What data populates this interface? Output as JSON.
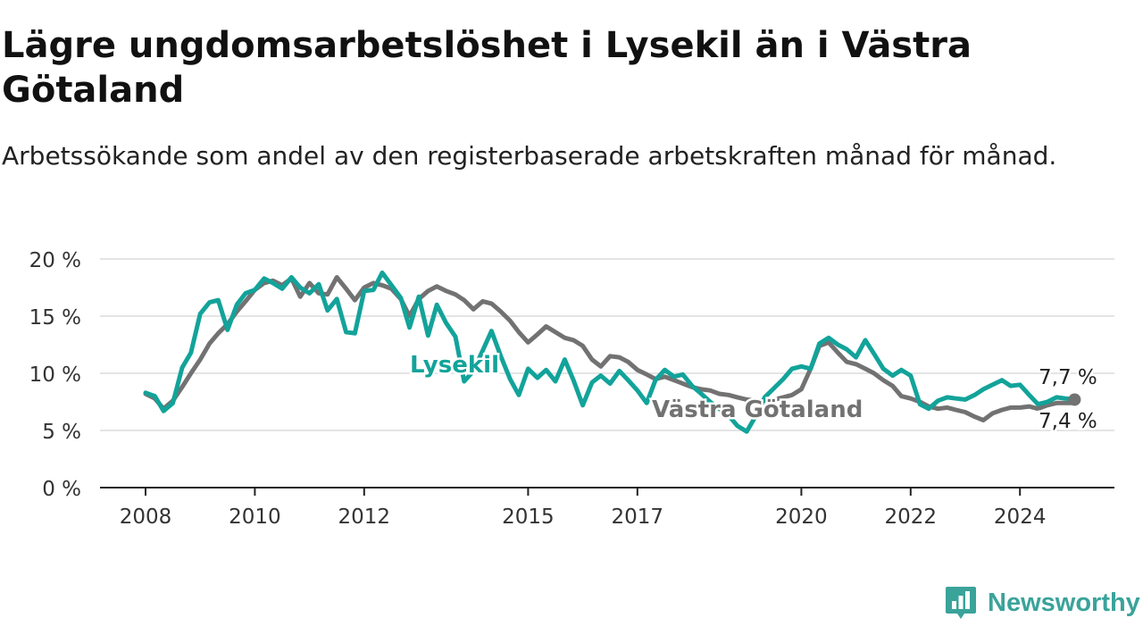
{
  "header": {
    "title": "Lägre ungdomsarbetslöshet i Lysekil än i Västra Götaland",
    "subtitle": "Arbetssökande som andel av den registerbaserade arbetskraften månad för månad."
  },
  "brand": {
    "name": "Newsworthy",
    "icon": "newsworthy-logo-icon",
    "color": "#3aa39a"
  },
  "chart_data": {
    "type": "line",
    "title": "Lägre ungdomsarbetslöshet i Lysekil än i Västra Götaland",
    "subtitle": "Arbetssökande som andel av den registerbaserade arbetskraften månad för månad.",
    "x_unit": "year (decimal, monthly)",
    "xlim": [
      2008,
      2025.6
    ],
    "ylim": [
      0,
      20
    ],
    "x_ticks": [
      2008,
      2010,
      2012,
      2015,
      2017,
      2020,
      2022,
      2024
    ],
    "x_tick_labels": [
      "2008",
      "2010",
      "2012",
      "2015",
      "2017",
      "2020",
      "2022",
      "2024"
    ],
    "y_ticks": [
      0,
      5,
      10,
      15,
      20
    ],
    "y_tick_labels": [
      "0 %",
      "5 %",
      "10 %",
      "15 %",
      "20 %"
    ],
    "grid": "horizontal",
    "legend": "inline labels",
    "series": [
      {
        "name": "Västra Götaland",
        "color": "#727272",
        "end_label": "7,4 %",
        "end_value": 7.4,
        "points": [
          [
            2008.0,
            8.2
          ],
          [
            2008.17,
            7.8
          ],
          [
            2008.33,
            6.9
          ],
          [
            2008.5,
            7.6
          ],
          [
            2008.67,
            8.8
          ],
          [
            2008.83,
            10.0
          ],
          [
            2009.0,
            11.2
          ],
          [
            2009.17,
            12.6
          ],
          [
            2009.33,
            13.5
          ],
          [
            2009.5,
            14.3
          ],
          [
            2009.67,
            15.4
          ],
          [
            2009.83,
            16.3
          ],
          [
            2010.0,
            17.3
          ],
          [
            2010.17,
            17.9
          ],
          [
            2010.33,
            18.1
          ],
          [
            2010.5,
            17.7
          ],
          [
            2010.67,
            18.3
          ],
          [
            2010.83,
            16.7
          ],
          [
            2011.0,
            17.9
          ],
          [
            2011.17,
            17.0
          ],
          [
            2011.33,
            16.9
          ],
          [
            2011.5,
            18.4
          ],
          [
            2011.67,
            17.4
          ],
          [
            2011.83,
            16.4
          ],
          [
            2012.0,
            17.5
          ],
          [
            2012.17,
            17.9
          ],
          [
            2012.33,
            17.7
          ],
          [
            2012.5,
            17.4
          ],
          [
            2012.67,
            16.5
          ],
          [
            2012.83,
            15.0
          ],
          [
            2013.0,
            16.5
          ],
          [
            2013.17,
            17.2
          ],
          [
            2013.33,
            17.6
          ],
          [
            2013.5,
            17.2
          ],
          [
            2013.67,
            16.9
          ],
          [
            2013.83,
            16.4
          ],
          [
            2014.0,
            15.6
          ],
          [
            2014.17,
            16.3
          ],
          [
            2014.33,
            16.1
          ],
          [
            2014.5,
            15.4
          ],
          [
            2014.67,
            14.6
          ],
          [
            2014.83,
            13.6
          ],
          [
            2015.0,
            12.7
          ],
          [
            2015.17,
            13.4
          ],
          [
            2015.33,
            14.1
          ],
          [
            2015.5,
            13.6
          ],
          [
            2015.67,
            13.1
          ],
          [
            2015.83,
            12.9
          ],
          [
            2016.0,
            12.4
          ],
          [
            2016.17,
            11.2
          ],
          [
            2016.33,
            10.6
          ],
          [
            2016.5,
            11.5
          ],
          [
            2016.67,
            11.4
          ],
          [
            2016.83,
            11.0
          ],
          [
            2017.0,
            10.3
          ],
          [
            2017.17,
            9.9
          ],
          [
            2017.33,
            9.5
          ],
          [
            2017.5,
            9.7
          ],
          [
            2017.67,
            9.4
          ],
          [
            2017.83,
            9.1
          ],
          [
            2018.0,
            8.8
          ],
          [
            2018.17,
            8.6
          ],
          [
            2018.33,
            8.5
          ],
          [
            2018.5,
            8.2
          ],
          [
            2018.67,
            8.1
          ],
          [
            2018.83,
            7.9
          ],
          [
            2019.0,
            7.7
          ],
          [
            2019.17,
            7.6
          ],
          [
            2019.33,
            7.6
          ],
          [
            2019.5,
            7.7
          ],
          [
            2019.67,
            7.9
          ],
          [
            2019.83,
            8.1
          ],
          [
            2020.0,
            8.6
          ],
          [
            2020.17,
            10.4
          ],
          [
            2020.33,
            12.4
          ],
          [
            2020.5,
            12.7
          ],
          [
            2020.67,
            11.8
          ],
          [
            2020.83,
            11.0
          ],
          [
            2021.0,
            10.8
          ],
          [
            2021.17,
            10.4
          ],
          [
            2021.33,
            10.0
          ],
          [
            2021.5,
            9.4
          ],
          [
            2021.67,
            8.9
          ],
          [
            2021.83,
            8.0
          ],
          [
            2022.0,
            7.8
          ],
          [
            2022.17,
            7.5
          ],
          [
            2022.33,
            7.1
          ],
          [
            2022.5,
            6.9
          ],
          [
            2022.67,
            7.0
          ],
          [
            2022.83,
            6.8
          ],
          [
            2023.0,
            6.6
          ],
          [
            2023.17,
            6.2
          ],
          [
            2023.33,
            5.9
          ],
          [
            2023.5,
            6.5
          ],
          [
            2023.67,
            6.8
          ],
          [
            2023.83,
            7.0
          ],
          [
            2024.0,
            7.0
          ],
          [
            2024.17,
            7.1
          ],
          [
            2024.33,
            6.9
          ],
          [
            2024.5,
            7.2
          ],
          [
            2024.67,
            7.4
          ],
          [
            2024.83,
            7.4
          ],
          [
            2025.0,
            7.4
          ]
        ]
      },
      {
        "name": "Lysekil",
        "color": "#12a39a",
        "end_label": "7,7 %",
        "end_value": 7.7,
        "points": [
          [
            2008.0,
            8.3
          ],
          [
            2008.17,
            8.0
          ],
          [
            2008.33,
            6.7
          ],
          [
            2008.5,
            7.4
          ],
          [
            2008.67,
            10.5
          ],
          [
            2008.83,
            11.8
          ],
          [
            2009.0,
            15.2
          ],
          [
            2009.17,
            16.2
          ],
          [
            2009.33,
            16.4
          ],
          [
            2009.5,
            13.8
          ],
          [
            2009.67,
            16.0
          ],
          [
            2009.83,
            17.0
          ],
          [
            2010.0,
            17.3
          ],
          [
            2010.17,
            18.3
          ],
          [
            2010.33,
            17.9
          ],
          [
            2010.5,
            17.4
          ],
          [
            2010.67,
            18.4
          ],
          [
            2010.83,
            17.5
          ],
          [
            2011.0,
            17.0
          ],
          [
            2011.17,
            17.8
          ],
          [
            2011.33,
            15.5
          ],
          [
            2011.5,
            16.5
          ],
          [
            2011.67,
            13.6
          ],
          [
            2011.83,
            13.5
          ],
          [
            2012.0,
            17.2
          ],
          [
            2012.17,
            17.3
          ],
          [
            2012.33,
            18.8
          ],
          [
            2012.5,
            17.7
          ],
          [
            2012.67,
            16.6
          ],
          [
            2012.83,
            14.0
          ],
          [
            2013.0,
            16.7
          ],
          [
            2013.17,
            13.3
          ],
          [
            2013.33,
            16.0
          ],
          [
            2013.5,
            14.4
          ],
          [
            2013.67,
            13.2
          ],
          [
            2013.83,
            9.3
          ],
          [
            2014.0,
            10.2
          ],
          [
            2014.17,
            12.0
          ],
          [
            2014.33,
            13.7
          ],
          [
            2014.5,
            11.5
          ],
          [
            2014.67,
            9.5
          ],
          [
            2014.83,
            8.1
          ],
          [
            2015.0,
            10.4
          ],
          [
            2015.17,
            9.6
          ],
          [
            2015.33,
            10.3
          ],
          [
            2015.5,
            9.3
          ],
          [
            2015.67,
            11.2
          ],
          [
            2015.83,
            9.4
          ],
          [
            2016.0,
            7.2
          ],
          [
            2016.17,
            9.2
          ],
          [
            2016.33,
            9.8
          ],
          [
            2016.5,
            9.1
          ],
          [
            2016.67,
            10.2
          ],
          [
            2016.83,
            9.4
          ],
          [
            2017.0,
            8.5
          ],
          [
            2017.17,
            7.4
          ],
          [
            2017.33,
            9.4
          ],
          [
            2017.5,
            10.3
          ],
          [
            2017.67,
            9.7
          ],
          [
            2017.83,
            9.9
          ],
          [
            2018.0,
            8.9
          ],
          [
            2018.17,
            8.2
          ],
          [
            2018.33,
            7.5
          ],
          [
            2018.5,
            6.9
          ],
          [
            2018.67,
            6.3
          ],
          [
            2018.83,
            5.4
          ],
          [
            2019.0,
            4.9
          ],
          [
            2019.17,
            6.3
          ],
          [
            2019.33,
            7.9
          ],
          [
            2019.5,
            8.7
          ],
          [
            2019.67,
            9.5
          ],
          [
            2019.83,
            10.4
          ],
          [
            2020.0,
            10.6
          ],
          [
            2020.17,
            10.4
          ],
          [
            2020.33,
            12.6
          ],
          [
            2020.5,
            13.1
          ],
          [
            2020.67,
            12.5
          ],
          [
            2020.83,
            12.1
          ],
          [
            2021.0,
            11.4
          ],
          [
            2021.17,
            12.9
          ],
          [
            2021.33,
            11.7
          ],
          [
            2021.5,
            10.4
          ],
          [
            2021.67,
            9.8
          ],
          [
            2021.83,
            10.3
          ],
          [
            2022.0,
            9.8
          ],
          [
            2022.17,
            7.3
          ],
          [
            2022.33,
            6.9
          ],
          [
            2022.5,
            7.6
          ],
          [
            2022.67,
            7.9
          ],
          [
            2022.83,
            7.8
          ],
          [
            2023.0,
            7.7
          ],
          [
            2023.17,
            8.1
          ],
          [
            2023.33,
            8.6
          ],
          [
            2023.5,
            9.0
          ],
          [
            2023.67,
            9.4
          ],
          [
            2023.83,
            8.9
          ],
          [
            2024.0,
            9.0
          ],
          [
            2024.17,
            8.1
          ],
          [
            2024.33,
            7.3
          ],
          [
            2024.5,
            7.5
          ],
          [
            2024.67,
            7.9
          ],
          [
            2024.83,
            7.8
          ],
          [
            2025.0,
            7.7
          ]
        ]
      }
    ]
  }
}
